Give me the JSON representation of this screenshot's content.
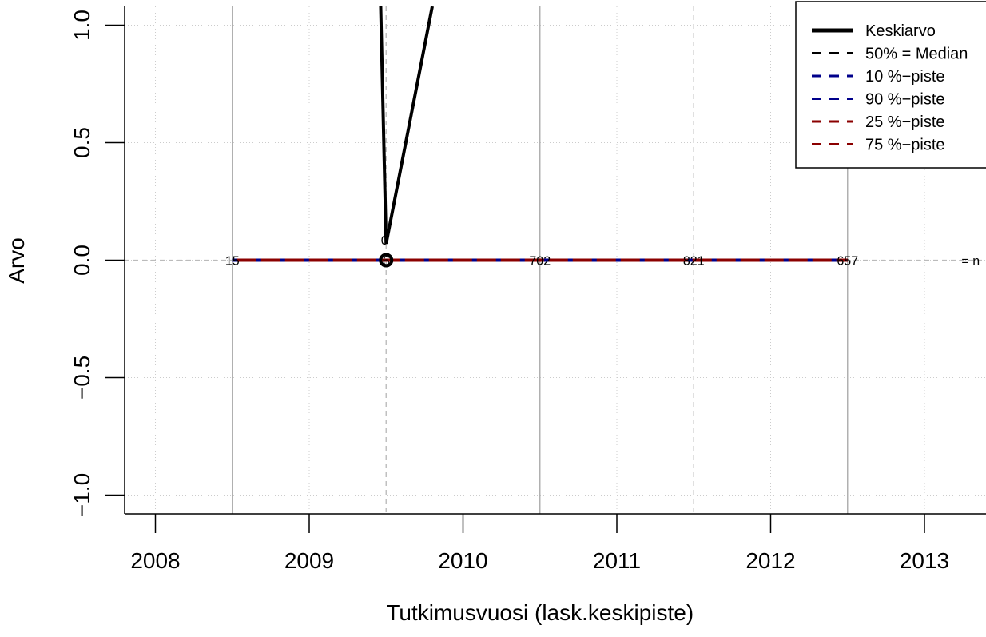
{
  "chart_data": {
    "type": "line",
    "xlabel": "Tutkimusvuosi (lask.keskipiste)",
    "ylabel": "Arvo",
    "xlim": [
      2007.8,
      2013.4
    ],
    "ylim": [
      -1.08,
      1.08
    ],
    "x_ticks": [
      {
        "value": 2008,
        "label": "2008"
      },
      {
        "value": 2009,
        "label": "2009"
      },
      {
        "value": 2010,
        "label": "2010"
      },
      {
        "value": 2011,
        "label": "2011"
      },
      {
        "value": 2012,
        "label": "2012"
      },
      {
        "value": 2013,
        "label": "2013"
      }
    ],
    "y_ticks": [
      {
        "value": -1.0,
        "label": "−1.0"
      },
      {
        "value": -0.5,
        "label": "−0.5"
      },
      {
        "value": 0.0,
        "label": "0.0"
      },
      {
        "value": 0.5,
        "label": "0.5"
      },
      {
        "value": 1.0,
        "label": "1.0"
      }
    ],
    "grid": true,
    "period_markers": [
      2008.5,
      2009.5,
      2010.5,
      2011.5,
      2012.5
    ],
    "series": [
      {
        "name": "Keskiarvo",
        "color": "#000000",
        "style": "solid",
        "x": [
          2009.45,
          2009.5,
          2009.8
        ],
        "y": [
          1.5,
          0.07,
          1.08
        ]
      },
      {
        "name": "50% = Median",
        "color": "#000000",
        "style": "dashed",
        "x": [
          2008.5,
          2012.5
        ],
        "y": [
          0,
          0
        ]
      },
      {
        "name": "10 %−piste",
        "color": "#00008b",
        "style": "dashed",
        "x": [
          2008.5,
          2012.5
        ],
        "y": [
          0,
          0
        ]
      },
      {
        "name": "90 %−piste",
        "color": "#00008b",
        "style": "dashed",
        "x": [
          2008.5,
          2012.5
        ],
        "y": [
          0,
          0
        ]
      },
      {
        "name": "25 %−piste",
        "color": "#8b0000",
        "style": "dashed",
        "x": [
          2008.5,
          2012.5
        ],
        "y": [
          0,
          0
        ]
      },
      {
        "name": "75 %−piste",
        "color": "#8b0000",
        "style": "dashed",
        "x": [
          2008.5,
          2012.5
        ],
        "y": [
          0,
          0
        ]
      }
    ],
    "point_marker": {
      "x": 2009.5,
      "y": 0,
      "label": "0",
      "label_y": 0.08
    },
    "n_labels": [
      {
        "x": 2008.5,
        "text": "15"
      },
      {
        "x": 2009.5,
        "text": "6"
      },
      {
        "x": 2010.5,
        "text": "702"
      },
      {
        "x": 2011.5,
        "text": "821"
      },
      {
        "x": 2012.5,
        "text": "657"
      },
      {
        "x": 2013.3,
        "text": "= n"
      }
    ],
    "legend_placement": "top-right"
  }
}
